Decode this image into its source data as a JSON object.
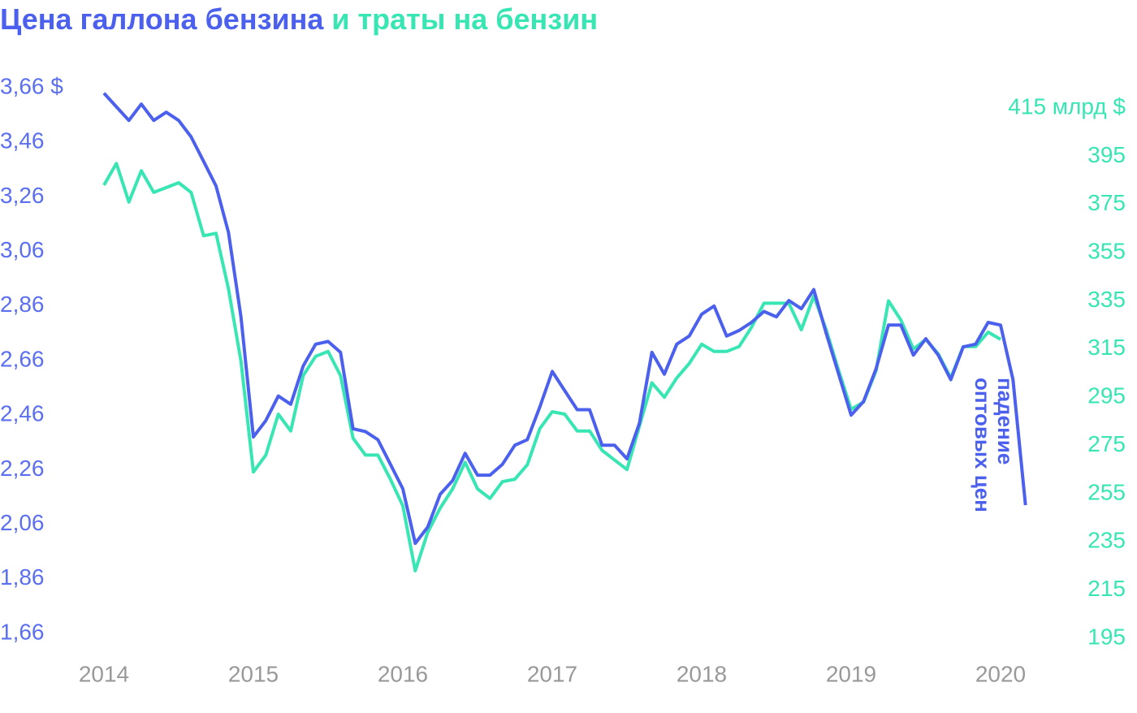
{
  "chart_data": {
    "type": "line",
    "title": [
      "Цена галлона бензина",
      "и траты на бензин"
    ],
    "annotation": [
      "падение",
      "оптовых цен"
    ],
    "x": [
      2014,
      2014.083,
      2014.167,
      2014.25,
      2014.333,
      2014.417,
      2014.5,
      2014.583,
      2014.667,
      2014.75,
      2014.833,
      2014.917,
      2015,
      2015.083,
      2015.167,
      2015.25,
      2015.333,
      2015.417,
      2015.5,
      2015.583,
      2015.667,
      2015.75,
      2015.833,
      2015.917,
      2016,
      2016.083,
      2016.167,
      2016.25,
      2016.333,
      2016.417,
      2016.5,
      2016.583,
      2016.667,
      2016.75,
      2016.833,
      2016.917,
      2017,
      2017.083,
      2017.167,
      2017.25,
      2017.333,
      2017.417,
      2017.5,
      2017.583,
      2017.667,
      2017.75,
      2017.833,
      2017.917,
      2018,
      2018.083,
      2018.167,
      2018.25,
      2018.333,
      2018.417,
      2018.5,
      2018.583,
      2018.667,
      2018.75,
      2018.833,
      2018.917,
      2019,
      2019.083,
      2019.167,
      2019.25,
      2019.333,
      2019.417,
      2019.5,
      2019.583,
      2019.667,
      2019.75,
      2019.833,
      2019.917,
      2020,
      2020.083,
      2020.167
    ],
    "series": [
      {
        "color": "#4c60ee",
        "values": [
          3.64,
          3.59,
          3.54,
          3.6,
          3.54,
          3.57,
          3.54,
          3.48,
          3.39,
          3.3,
          3.13,
          2.82,
          2.38,
          2.44,
          2.53,
          2.5,
          2.64,
          2.72,
          2.73,
          2.69,
          2.41,
          2.4,
          2.37,
          2.28,
          2.19,
          1.99,
          2.05,
          2.17,
          2.22,
          2.32,
          2.24,
          2.24,
          2.28,
          2.35,
          2.37,
          2.49,
          2.62,
          2.55,
          2.48,
          2.48,
          2.35,
          2.35,
          2.3,
          2.43,
          2.69,
          2.61,
          2.72,
          2.75,
          2.83,
          2.86,
          2.75,
          2.77,
          2.8,
          2.84,
          2.82,
          2.88,
          2.85,
          2.92,
          2.76,
          2.61,
          2.46,
          2.51,
          2.63,
          2.79,
          2.79,
          2.68,
          2.74,
          2.68,
          2.59,
          2.71,
          2.72,
          2.8,
          2.79,
          2.59,
          2.13
        ]
      },
      {
        "color": "#38e6b4",
        "axis": "y2",
        "values": [
          383,
          392,
          376,
          389,
          380,
          382,
          384,
          380,
          362,
          363,
          340,
          310,
          264,
          271,
          288,
          281,
          304,
          312,
          314,
          304,
          278,
          271,
          271,
          261,
          250,
          223,
          239,
          249,
          257,
          268,
          257,
          253,
          260,
          261,
          267,
          282,
          289,
          288,
          281,
          281,
          273,
          269,
          265,
          283,
          301,
          295,
          303,
          309,
          317,
          314,
          314,
          316,
          324,
          334,
          334,
          334,
          323,
          337,
          323,
          306,
          290,
          293,
          306,
          335,
          327,
          315,
          319,
          313,
          303,
          316,
          316,
          322,
          319,
          null,
          null
        ]
      }
    ],
    "xlim": [
      2013.85,
      2020.9
    ],
    "xticks": [
      2014,
      2015,
      2016,
      2017,
      2018,
      2019,
      2020
    ],
    "ylim": [
      1.66,
      3.66
    ],
    "yticks": [
      {
        "value": 1.66,
        "label": "1,66"
      },
      {
        "value": 1.86,
        "label": "1,86"
      },
      {
        "value": 2.06,
        "label": "2,06"
      },
      {
        "value": 2.26,
        "label": "2,26"
      },
      {
        "value": 2.46,
        "label": "2,46"
      },
      {
        "value": 2.66,
        "label": "2,66"
      },
      {
        "value": 2.86,
        "label": "2,86"
      },
      {
        "value": 3.06,
        "label": "3,06"
      },
      {
        "value": 3.26,
        "label": "3,26"
      },
      {
        "value": 3.46,
        "label": "3,46"
      },
      {
        "value": 3.66,
        "label": "3,66 $"
      }
    ],
    "y2lim": [
      195,
      415
    ],
    "y2ticks": [
      195,
      215,
      235,
      255,
      275,
      295,
      315,
      335,
      355,
      375,
      395,
      {
        "value": 415,
        "label": "415 млрд $"
      }
    ]
  }
}
